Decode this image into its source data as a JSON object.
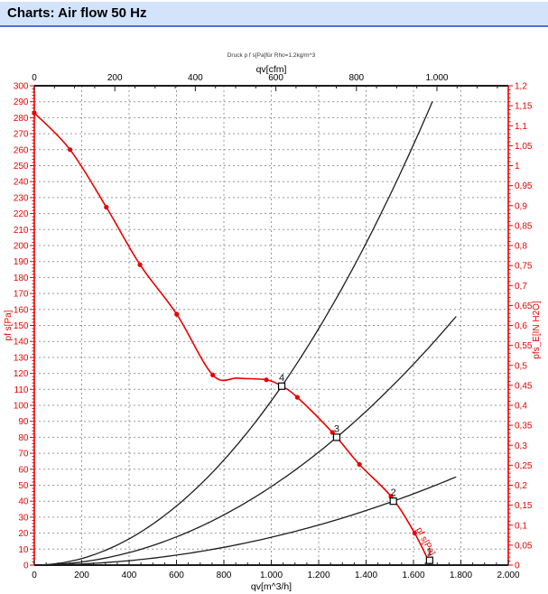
{
  "header": {
    "title": "Charts: Air flow 50 Hz"
  },
  "chart_data": {
    "type": "line",
    "title": "Druck p f s[Pa]für Rho=1,2kg/m^3",
    "grid": true,
    "legend_position": "none",
    "colors": {
      "red": "#e80000",
      "black": "#1c1c1c",
      "grid": "#999999",
      "title_text": "#333333"
    },
    "top_axis": {
      "label": "qv[cfm]",
      "unit": "cfm",
      "tick_values": [
        0,
        200,
        400,
        600,
        800,
        1000
      ],
      "tick_labels": [
        "0",
        "200",
        "400",
        "600",
        "800",
        "1.000"
      ],
      "minor_step": 50,
      "cfm_per_m3h": 0.58858
    },
    "bottom_axis": {
      "label": "qv[m^3/h]",
      "min": 0,
      "max": 2000,
      "tick_values": [
        0,
        200,
        400,
        600,
        800,
        1000,
        1200,
        1400,
        1600,
        1800,
        2000
      ],
      "tick_labels": [
        "0",
        "200",
        "400",
        "600",
        "800",
        "1.000",
        "1.200",
        "1.400",
        "1.600",
        "1.800",
        "2.000"
      ],
      "minor_step": 50
    },
    "left_axis": {
      "label": "pf s[Pa]",
      "min": 0,
      "max": 300,
      "tick_step": 10,
      "minor_step": 2,
      "tick_labels": [
        "0",
        "10",
        "20",
        "30",
        "40",
        "50",
        "60",
        "70",
        "80",
        "90",
        "100",
        "110",
        "120",
        "130",
        "140",
        "150",
        "160",
        "170",
        "180",
        "190",
        "200",
        "210",
        "220",
        "230",
        "240",
        "250",
        "260",
        "270",
        "280",
        "290",
        "300"
      ]
    },
    "right_axis": {
      "label": "pfs_E[IN H2O]",
      "min": 0,
      "max": 1.2,
      "tick_step": 0.05,
      "minor_step": 0.01,
      "tick_labels": [
        "0",
        "0,05",
        "0,1",
        "0,15",
        "0,2",
        "0,25",
        "0,3",
        "0,35",
        "0,4",
        "0,45",
        "0,5",
        "0,55",
        "0,6",
        "0,65",
        "0,7",
        "0,75",
        "0,8",
        "0,85",
        "0,9",
        "0,95",
        "1",
        "1,05",
        "1,1",
        "1,15",
        "1,2"
      ]
    },
    "fan_curve": {
      "name": "pf s[Pa]",
      "points_qv_p": [
        [
          0,
          283
        ],
        [
          151,
          260
        ],
        [
          304,
          224
        ],
        [
          446,
          188
        ],
        [
          601,
          157
        ],
        [
          753,
          119
        ],
        [
          860,
          117
        ],
        [
          979,
          116
        ],
        [
          1044,
          112
        ],
        [
          1110,
          105
        ],
        [
          1258,
          83
        ],
        [
          1372,
          63
        ],
        [
          1505,
          43
        ],
        [
          1605,
          20
        ],
        [
          1672,
          0
        ]
      ],
      "measured_points_qv_p": [
        [
          0,
          283
        ],
        [
          151,
          260
        ],
        [
          304,
          224
        ],
        [
          446,
          188
        ],
        [
          601,
          157
        ],
        [
          753,
          119
        ],
        [
          979,
          116
        ],
        [
          1110,
          105
        ],
        [
          1258,
          83
        ],
        [
          1372,
          63
        ],
        [
          1505,
          43
        ],
        [
          1605,
          20
        ]
      ],
      "inline_label": {
        "text": "pf s[Pa]",
        "qv": 1622,
        "p": 14,
        "angle_deg": 62
      }
    },
    "system_curves": [
      {
        "name": "system-curve-through-point-4",
        "k": 0.0001028,
        "qv_end": 1690
      },
      {
        "name": "system-curve-through-point-3",
        "k": 4.913e-05,
        "qv_end": 1790
      },
      {
        "name": "system-curve-through-point-2",
        "k": 1.743e-05,
        "qv_end": 1790
      }
    ],
    "operating_points": [
      {
        "label": "1",
        "qv": 1668,
        "p": 3
      },
      {
        "label": "2",
        "qv": 1515,
        "p": 40
      },
      {
        "label": "3",
        "qv": 1276,
        "p": 80
      },
      {
        "label": "4",
        "qv": 1044,
        "p": 112
      }
    ]
  }
}
